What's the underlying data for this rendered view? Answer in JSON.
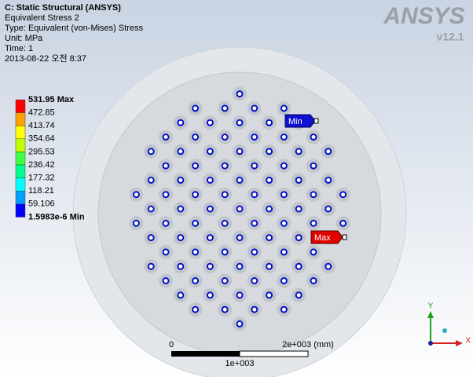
{
  "header": {
    "lines": [
      "C: Static Structural (ANSYS)",
      "Equivalent Stress 2",
      "Type: Equivalent (von-Mises) Stress",
      "Unit: MPa",
      "Time: 1",
      "2013-08-22 오전 8:37"
    ]
  },
  "legend": {
    "labels": [
      "531.95 Max",
      "472.85",
      "413.74",
      "354.64",
      "295.53",
      "236.42",
      "177.32",
      "118.21",
      "59.106",
      "1.5983e-6 Min"
    ]
  },
  "probes": {
    "min": "Min",
    "max": "Max"
  },
  "scale": {
    "start": "0",
    "end": "2e+003 (mm)",
    "mid": "1e+003"
  },
  "logo": {
    "brand": "ANSYS",
    "version": "v12.1"
  },
  "triad": {
    "y": "Y",
    "x": "X"
  }
}
